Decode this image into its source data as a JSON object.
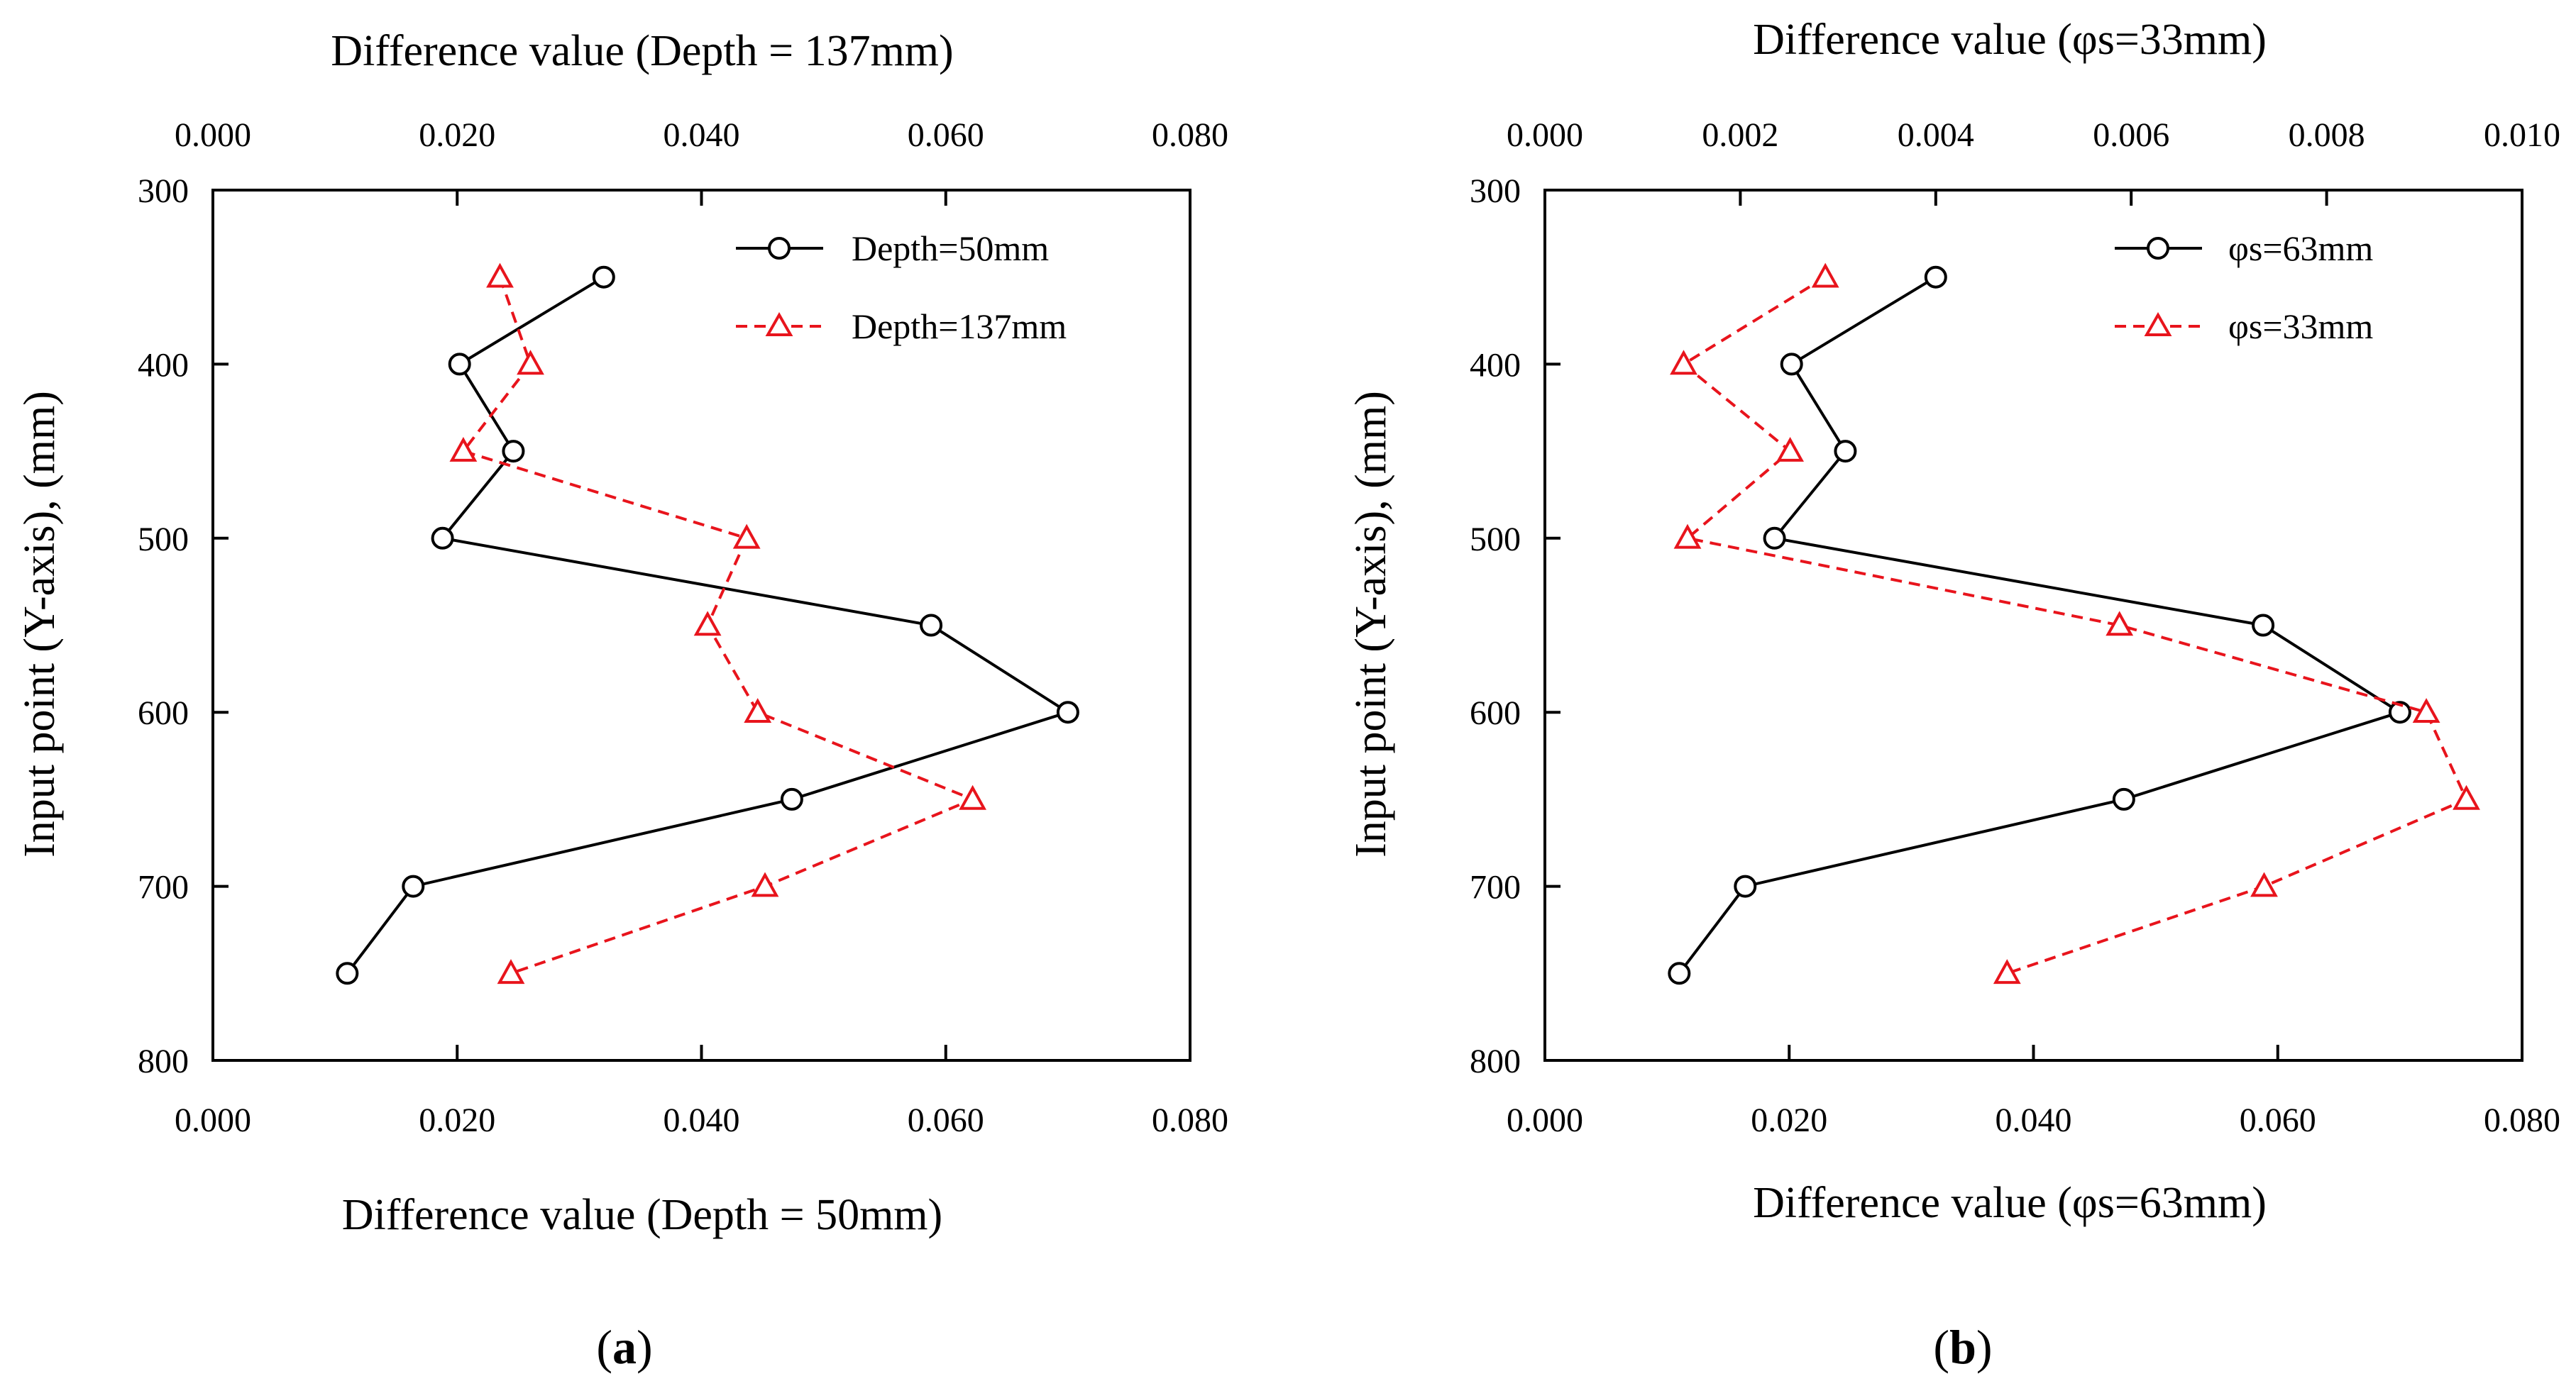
{
  "chart_data": [
    {
      "type": "line",
      "panel_label": "a",
      "title": "",
      "top_xlabel": "Difference value (Depth = 137mm)",
      "xlabel": "Difference value (Depth = 50mm)",
      "ylabel": "Input point (Y-axis), (mm)",
      "xlim": [
        0,
        0.08
      ],
      "top_xlim": [
        0,
        0.08
      ],
      "ylim": [
        800,
        300
      ],
      "xticks": [
        "0.000",
        "0.020",
        "0.040",
        "0.060",
        "0.080"
      ],
      "top_xticks": [
        "0.000",
        "0.020",
        "0.040",
        "0.060",
        "0.080"
      ],
      "yticks": [
        "300",
        "400",
        "500",
        "600",
        "700",
        "800"
      ],
      "grid": false,
      "legend_position": "top-right",
      "series": [
        {
          "name": "Depth=50mm",
          "axis": "bottom",
          "color": "#000000",
          "line": "solid",
          "marker": "circle",
          "x": [
            0.032,
            0.0202,
            0.0246,
            0.0188,
            0.0588,
            0.07,
            0.0474,
            0.0164,
            0.011
          ],
          "y": [
            350,
            400,
            450,
            500,
            550,
            600,
            650,
            700,
            750
          ]
        },
        {
          "name": "Depth=137mm",
          "axis": "top",
          "color": "#e8141c",
          "line": "dashed",
          "marker": "triangle",
          "x": [
            0.0235,
            0.026,
            0.0205,
            0.0437,
            0.0405,
            0.0446,
            0.0622,
            0.0452,
            0.0244
          ],
          "y": [
            350,
            400,
            450,
            500,
            550,
            600,
            650,
            700,
            750
          ]
        }
      ]
    },
    {
      "type": "line",
      "panel_label": "b",
      "title": "",
      "top_xlabel": "Difference value (φs=33mm)",
      "xlabel": "Difference value (φs=63mm)",
      "ylabel": "Input point (Y-axis), (mm)",
      "xlim": [
        0,
        0.08
      ],
      "top_xlim": [
        0,
        0.01
      ],
      "ylim": [
        800,
        300
      ],
      "xticks": [
        "0.000",
        "0.020",
        "0.040",
        "0.060",
        "0.080"
      ],
      "top_xticks": [
        "0.000",
        "0.002",
        "0.004",
        "0.006",
        "0.008",
        "0.010"
      ],
      "yticks": [
        "300",
        "400",
        "500",
        "600",
        "700",
        "800"
      ],
      "grid": false,
      "legend_position": "top-right",
      "series": [
        {
          "name": "φs=63mm",
          "axis": "bottom",
          "color": "#000000",
          "line": "solid",
          "marker": "circle",
          "x": [
            0.032,
            0.0202,
            0.0246,
            0.0188,
            0.0588,
            0.07,
            0.0474,
            0.0164,
            0.011
          ],
          "y": [
            350,
            400,
            450,
            500,
            550,
            600,
            650,
            700,
            750
          ]
        },
        {
          "name": "φs=33mm",
          "axis": "top",
          "color": "#e8141c",
          "line": "dashed",
          "marker": "triangle",
          "x": [
            0.00287,
            0.00142,
            0.00251,
            0.00146,
            0.00588,
            0.00902,
            0.00943,
            0.00736,
            0.00473
          ],
          "y": [
            350,
            400,
            450,
            500,
            550,
            600,
            650,
            700,
            750
          ]
        }
      ]
    }
  ]
}
